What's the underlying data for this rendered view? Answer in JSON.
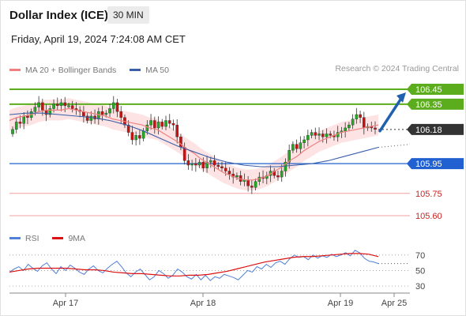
{
  "header": {
    "title": "Dollar Index (ICE)",
    "interval": "30 MIN",
    "datetime": "Friday, April 19, 2024 7:24:08 AM CET",
    "credit": "Research © 2024 Trading Central"
  },
  "legend": {
    "bollinger": "MA 20 + Bollinger Bands",
    "ma50": "MA 50",
    "rsi": "RSI",
    "rsi_ma": "9MA"
  },
  "colors": {
    "bull": "#22aa22",
    "bear": "#cc1111",
    "ma20": "#f08080",
    "ma50": "#3a5fa8",
    "band": "#fde0e0",
    "resistance": "#5cad1e",
    "support_blue": "#2060d0",
    "support_red": "#f0a0a0",
    "current": "#333333",
    "arrow": "#2060b0",
    "rsi": "#5080d8",
    "rsi_ma": "#dd1111"
  },
  "chart_data": [
    {
      "type": "candlestick",
      "title": "Dollar Index (ICE)",
      "timeframe": "30 MIN",
      "x_ticks": [
        "Apr 17",
        "Apr 18",
        "Apr 19",
        "Apr 25"
      ],
      "ylim": [
        105.55,
        106.52
      ],
      "levels": [
        {
          "value": 106.45,
          "label": "106.45",
          "kind": "resistance"
        },
        {
          "value": 106.35,
          "label": "106.35",
          "kind": "resistance"
        },
        {
          "value": 106.18,
          "label": "106.18",
          "kind": "current"
        },
        {
          "value": 105.95,
          "label": "105.95",
          "kind": "support"
        },
        {
          "value": 105.75,
          "label": "105.75",
          "kind": "support"
        },
        {
          "value": 105.6,
          "label": "105.60",
          "kind": "support"
        }
      ],
      "forecast_target": 106.45,
      "closes": [
        106.18,
        106.23,
        106.22,
        106.27,
        106.26,
        106.3,
        106.33,
        106.36,
        106.31,
        106.28,
        106.32,
        106.35,
        106.34,
        106.36,
        106.34,
        106.34,
        106.32,
        106.31,
        106.3,
        106.27,
        106.24,
        106.27,
        106.25,
        106.3,
        106.28,
        106.29,
        106.32,
        106.36,
        106.3,
        106.26,
        106.21,
        106.16,
        106.11,
        106.14,
        106.12,
        106.17,
        106.21,
        106.24,
        106.19,
        106.23,
        106.2,
        106.24,
        106.22,
        106.21,
        106.13,
        106.06,
        105.97,
        105.94,
        105.95,
        105.94,
        105.96,
        105.92,
        105.96,
        105.97,
        105.94,
        105.93,
        105.92,
        105.9,
        105.88,
        105.86,
        105.87,
        105.83,
        105.84,
        105.8,
        105.79,
        105.83,
        105.86,
        105.85,
        105.87,
        105.9,
        105.87,
        105.86,
        105.9,
        105.96,
        106.04,
        106.08,
        106.05,
        106.09,
        106.11,
        106.14,
        106.16,
        106.14,
        106.15,
        106.13,
        106.15,
        106.14,
        106.13,
        106.16,
        106.17,
        106.19,
        106.21,
        106.25,
        106.28,
        106.26,
        106.19,
        106.2,
        106.19,
        106.18
      ],
      "ma20": [
        106.24,
        106.26,
        106.27,
        106.28,
        106.3,
        106.31,
        106.31,
        106.31,
        106.32,
        106.31,
        106.3,
        106.29,
        106.28,
        106.27,
        106.25,
        106.24,
        106.23,
        106.22,
        106.21,
        106.19,
        106.18,
        106.15,
        106.12,
        106.09,
        106.05,
        106.02,
        105.98,
        105.95,
        105.92,
        105.89,
        105.87,
        105.85,
        105.84,
        105.84,
        105.85,
        105.87,
        105.9,
        105.93,
        105.97,
        106.0,
        106.04,
        106.07,
        106.1,
        106.12,
        106.14,
        106.16,
        106.17,
        106.18,
        106.19,
        106.2,
        106.21
      ],
      "ma50": [
        106.29,
        106.3,
        106.3,
        106.29,
        106.28,
        106.27,
        106.25,
        106.22,
        106.18,
        106.13,
        106.08,
        106.04,
        106.0,
        105.97,
        105.95,
        105.94,
        105.94,
        105.95,
        105.96,
        105.98,
        106.01,
        106.04,
        106.07
      ],
      "ma50_projection": [
        106.07,
        106.09
      ]
    },
    {
      "type": "line",
      "title": "RSI",
      "y_ticks": [
        70,
        50,
        30
      ],
      "ylim": [
        25,
        80
      ],
      "series": [
        {
          "name": "RSI",
          "values": [
            48,
            52,
            55,
            50,
            58,
            53,
            49,
            56,
            60,
            52,
            46,
            55,
            50,
            57,
            53,
            48,
            45,
            52,
            56,
            50,
            47,
            53,
            58,
            62,
            55,
            47,
            42,
            48,
            52,
            45,
            38,
            42,
            50,
            46,
            40,
            44,
            52,
            48,
            42,
            39,
            45,
            38,
            44,
            37,
            42,
            40,
            45,
            43,
            41,
            38,
            44,
            50,
            48,
            55,
            52,
            58,
            54,
            60,
            62,
            58,
            65,
            70,
            67,
            68,
            64,
            70,
            66,
            69,
            67,
            71,
            68,
            70,
            73,
            69,
            76,
            73,
            66,
            62,
            61,
            59
          ]
        },
        {
          "name": "9MA",
          "values": [
            48,
            50,
            52,
            53,
            53,
            53,
            53,
            52,
            51,
            51,
            50,
            48,
            47,
            46,
            46,
            45,
            44,
            43,
            43,
            44,
            44,
            45,
            47,
            49,
            52,
            55,
            58,
            61,
            63,
            65,
            67,
            68,
            68,
            69,
            70,
            71,
            72,
            72,
            71,
            68
          ]
        }
      ]
    }
  ]
}
